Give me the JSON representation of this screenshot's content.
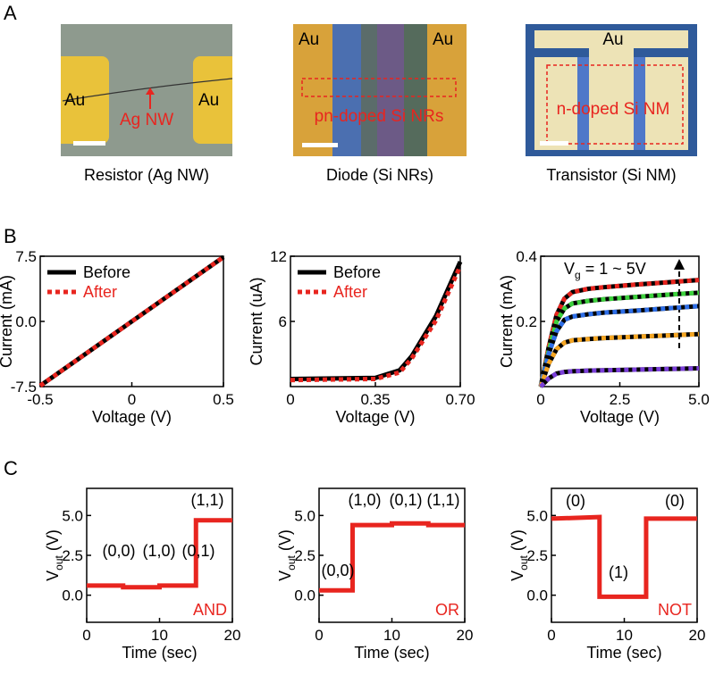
{
  "panel_labels": [
    "A",
    "B",
    "C"
  ],
  "micrographs": [
    {
      "labels": [
        "Au",
        "Au",
        "Ag NW"
      ],
      "caption": "Resistor (Ag NW)"
    },
    {
      "labels": [
        "Au",
        "Au",
        "pn-doped Si NRs"
      ],
      "caption": "Diode (Si NRs)"
    },
    {
      "labels": [
        "Au",
        "n-doped Si NM"
      ],
      "caption": "Transistor (Si NM)"
    }
  ],
  "chart_data": [
    {
      "type": "line",
      "x_label": "Voltage (V)",
      "y_label": "Current (mA)",
      "xlim": [
        -0.5,
        0.5
      ],
      "xticks": [
        -0.5,
        0,
        0.5
      ],
      "ylim": [
        -7.5,
        7.5
      ],
      "yticks": [
        -7.5,
        {
          "value": 0,
          "label": "0.0"
        },
        7.5
      ],
      "legend": "upper-left",
      "series": [
        {
          "name": "Before",
          "color": "#000000",
          "linestyle": "solid",
          "x": [
            -0.5,
            0,
            0.5
          ],
          "values": [
            -7.4,
            0,
            7.4
          ]
        },
        {
          "name": "After",
          "color": "#e8251f",
          "linestyle": "dotted",
          "x": [
            -0.5,
            0,
            0.5
          ],
          "values": [
            -7.4,
            0,
            7.4
          ]
        }
      ]
    },
    {
      "type": "line",
      "x_label": "Voltage (V)",
      "y_label": "Current (uA)",
      "xlim": [
        0,
        0.7
      ],
      "xticks": [
        0,
        0.35,
        {
          "value": 0.7,
          "label": "0.70"
        }
      ],
      "ylim": [
        0,
        12
      ],
      "yticks": [
        6,
        12
      ],
      "legend": "upper-left",
      "series": [
        {
          "name": "Before",
          "color": "#000000",
          "linestyle": "solid",
          "x": [
            0,
            0.35,
            0.45,
            0.5,
            0.6,
            0.7
          ],
          "values": [
            0.7,
            0.8,
            1.5,
            2.8,
            6.5,
            11.5
          ]
        },
        {
          "name": "After",
          "color": "#e8251f",
          "linestyle": "dotted",
          "x": [
            0,
            0.35,
            0.45,
            0.5,
            0.6,
            0.7
          ],
          "values": [
            0.6,
            0.7,
            1.3,
            2.6,
            6.1,
            11.1
          ]
        }
      ]
    },
    {
      "type": "line",
      "x_label": "Voltage (V)",
      "y_label": "Current (mA)",
      "annotation": [
        "V",
        "g",
        " = 1 ~ 5V"
      ],
      "xlim": [
        0,
        5
      ],
      "xticks": [
        0,
        2.5,
        {
          "value": 5,
          "label": "5.0"
        }
      ],
      "ylim": [
        0,
        0.4
      ],
      "yticks": [
        0.2,
        0.4
      ],
      "series": [
        {
          "color": "#000000",
          "linestyle": "solid",
          "x": [
            0,
            0.25,
            0.5,
            0.75,
            1,
            1.5,
            2,
            3,
            4,
            5
          ],
          "values": [
            0,
            0.12,
            0.22,
            0.27,
            0.29,
            0.3,
            0.305,
            0.313,
            0.32,
            0.327
          ]
        },
        {
          "color": "#000000",
          "linestyle": "solid",
          "x": [
            0,
            0.25,
            0.5,
            0.75,
            1,
            1.5,
            2,
            3,
            4,
            5
          ],
          "values": [
            0,
            0.11,
            0.2,
            0.24,
            0.255,
            0.263,
            0.268,
            0.275,
            0.282,
            0.288
          ]
        },
        {
          "color": "#000000",
          "linestyle": "solid",
          "x": [
            0,
            0.25,
            0.5,
            0.75,
            1,
            1.5,
            2,
            3,
            4,
            5
          ],
          "values": [
            0,
            0.1,
            0.17,
            0.205,
            0.215,
            0.222,
            0.227,
            0.233,
            0.24,
            0.247
          ]
        },
        {
          "color": "#000000",
          "linestyle": "solid",
          "x": [
            0,
            0.25,
            0.5,
            0.75,
            1,
            1.5,
            2,
            3,
            4,
            5
          ],
          "values": [
            0,
            0.07,
            0.115,
            0.135,
            0.142,
            0.146,
            0.149,
            0.153,
            0.157,
            0.161
          ]
        },
        {
          "color": "#000000",
          "linestyle": "solid",
          "x": [
            0,
            0.25,
            0.5,
            0.75,
            1,
            1.5,
            2,
            3,
            4,
            5
          ],
          "values": [
            0,
            0.025,
            0.04,
            0.045,
            0.047,
            0.049,
            0.05,
            0.052,
            0.054,
            0.056
          ]
        },
        {
          "color": "#e8251f",
          "linestyle": "dotted",
          "x": [
            0,
            0.25,
            0.5,
            0.75,
            1,
            1.5,
            2,
            3,
            4,
            5
          ],
          "values": [
            0,
            0.12,
            0.22,
            0.27,
            0.29,
            0.3,
            0.305,
            0.313,
            0.32,
            0.327
          ]
        },
        {
          "color": "#3dd13d",
          "linestyle": "dotted",
          "x": [
            0,
            0.25,
            0.5,
            0.75,
            1,
            1.5,
            2,
            3,
            4,
            5
          ],
          "values": [
            0,
            0.11,
            0.2,
            0.24,
            0.255,
            0.263,
            0.268,
            0.275,
            0.282,
            0.288
          ]
        },
        {
          "color": "#2f6fe8",
          "linestyle": "dotted",
          "x": [
            0,
            0.25,
            0.5,
            0.75,
            1,
            1.5,
            2,
            3,
            4,
            5
          ],
          "values": [
            0,
            0.1,
            0.17,
            0.205,
            0.215,
            0.222,
            0.227,
            0.233,
            0.24,
            0.247
          ]
        },
        {
          "color": "#f5a623",
          "linestyle": "dotted",
          "x": [
            0,
            0.25,
            0.5,
            0.75,
            1,
            1.5,
            2,
            3,
            4,
            5
          ],
          "values": [
            0,
            0.07,
            0.115,
            0.135,
            0.142,
            0.146,
            0.149,
            0.153,
            0.157,
            0.161
          ]
        },
        {
          "color": "#7b3fd9",
          "linestyle": "dotted",
          "x": [
            0,
            0.25,
            0.5,
            0.75,
            1,
            1.5,
            2,
            3,
            4,
            5
          ],
          "values": [
            0,
            0.025,
            0.04,
            0.045,
            0.047,
            0.049,
            0.05,
            0.052,
            0.054,
            0.056
          ]
        }
      ]
    },
    {
      "type": "line",
      "x_label": "Time (sec)",
      "y_label": [
        "V",
        "out",
        " (V)"
      ],
      "annotations": [
        "(0,0)",
        "(1,0)",
        "(0,1)",
        "(1,1)"
      ],
      "gate": "AND",
      "xlim": [
        0,
        20
      ],
      "xticks": [
        0,
        10,
        20
      ],
      "ylim": [
        -1.7,
        6.7
      ],
      "yticks": [
        {
          "value": 0,
          "label": "0.0"
        },
        2.5,
        {
          "value": 5,
          "label": "5.0"
        }
      ],
      "series": [
        {
          "color": "#e8251f",
          "linestyle": "solid",
          "x": [
            0,
            5,
            5,
            10,
            10,
            15,
            15,
            20
          ],
          "values": [
            0.6,
            0.6,
            0.5,
            0.5,
            0.6,
            0.6,
            4.7,
            4.7
          ]
        }
      ]
    },
    {
      "type": "line",
      "x_label": "Time (sec)",
      "y_label": [
        "V",
        "out",
        " (V)"
      ],
      "annotations": [
        "(0,0)",
        "(1,0)",
        "(0,1)",
        "(1,1)"
      ],
      "gate": "OR",
      "xlim": [
        0,
        20
      ],
      "xticks": [
        0,
        10,
        20
      ],
      "ylim": [
        -1.7,
        6.7
      ],
      "yticks": [
        {
          "value": 0,
          "label": "0.0"
        },
        2.5,
        {
          "value": 5,
          "label": "5.0"
        }
      ],
      "series": [
        {
          "color": "#e8251f",
          "linestyle": "solid",
          "x": [
            0,
            4.6,
            4.6,
            10,
            10,
            15,
            15,
            20
          ],
          "values": [
            0.3,
            0.3,
            4.4,
            4.4,
            4.5,
            4.5,
            4.4,
            4.4
          ]
        }
      ]
    },
    {
      "type": "line",
      "x_label": "Time (sec)",
      "y_label": [
        "V",
        "out",
        " (V)"
      ],
      "annotations": [
        "(0)",
        "(1)",
        "(0)"
      ],
      "gate": "NOT",
      "xlim": [
        0,
        20
      ],
      "xticks": [
        0,
        10,
        20
      ],
      "ylim": [
        -1.7,
        6.7
      ],
      "yticks": [
        {
          "value": 0,
          "label": "0.0"
        },
        2.5,
        {
          "value": 5,
          "label": "5.0"
        }
      ],
      "series": [
        {
          "color": "#e8251f",
          "linestyle": "solid",
          "x": [
            0,
            6.6,
            6.6,
            13,
            13,
            20
          ],
          "values": [
            4.8,
            4.9,
            -0.1,
            -0.1,
            4.8,
            4.8
          ]
        }
      ]
    }
  ]
}
